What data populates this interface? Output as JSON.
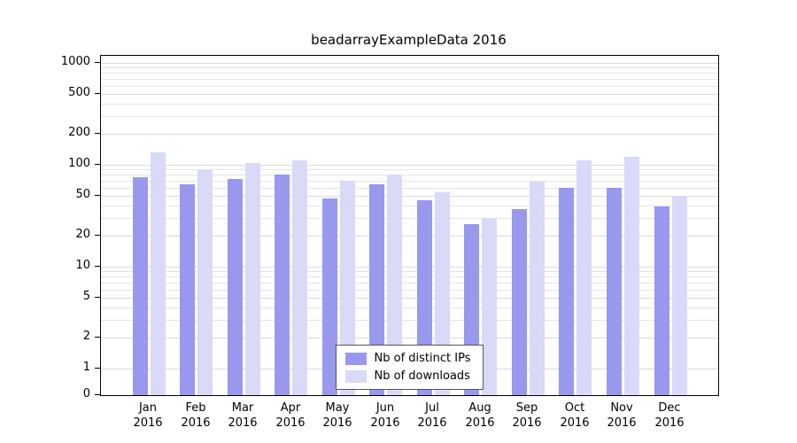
{
  "chart_data": {
    "type": "bar",
    "title": "beadarrayExampleData 2016",
    "year": "2016",
    "categories": [
      "Jan",
      "Feb",
      "Mar",
      "Apr",
      "May",
      "Jun",
      "Jul",
      "Aug",
      "Sep",
      "Oct",
      "Nov",
      "Dec"
    ],
    "series": [
      {
        "name": "Nb of distinct IPs",
        "color": "#9898ee",
        "values": [
          76,
          65,
          73,
          80,
          47,
          65,
          45,
          26,
          37,
          60,
          60,
          39
        ]
      },
      {
        "name": "Nb of downloads",
        "color": "#d9d9f8",
        "values": [
          132,
          88,
          104,
          110,
          70,
          80,
          54,
          30,
          68,
          110,
          120,
          50
        ]
      }
    ],
    "yticks": [
      0,
      1,
      2,
      5,
      10,
      20,
      50,
      100,
      200,
      500,
      1000
    ],
    "ylim": [
      0,
      1000
    ],
    "yscale": "log",
    "grid": true,
    "legend_position": "bottom-center-inside"
  }
}
